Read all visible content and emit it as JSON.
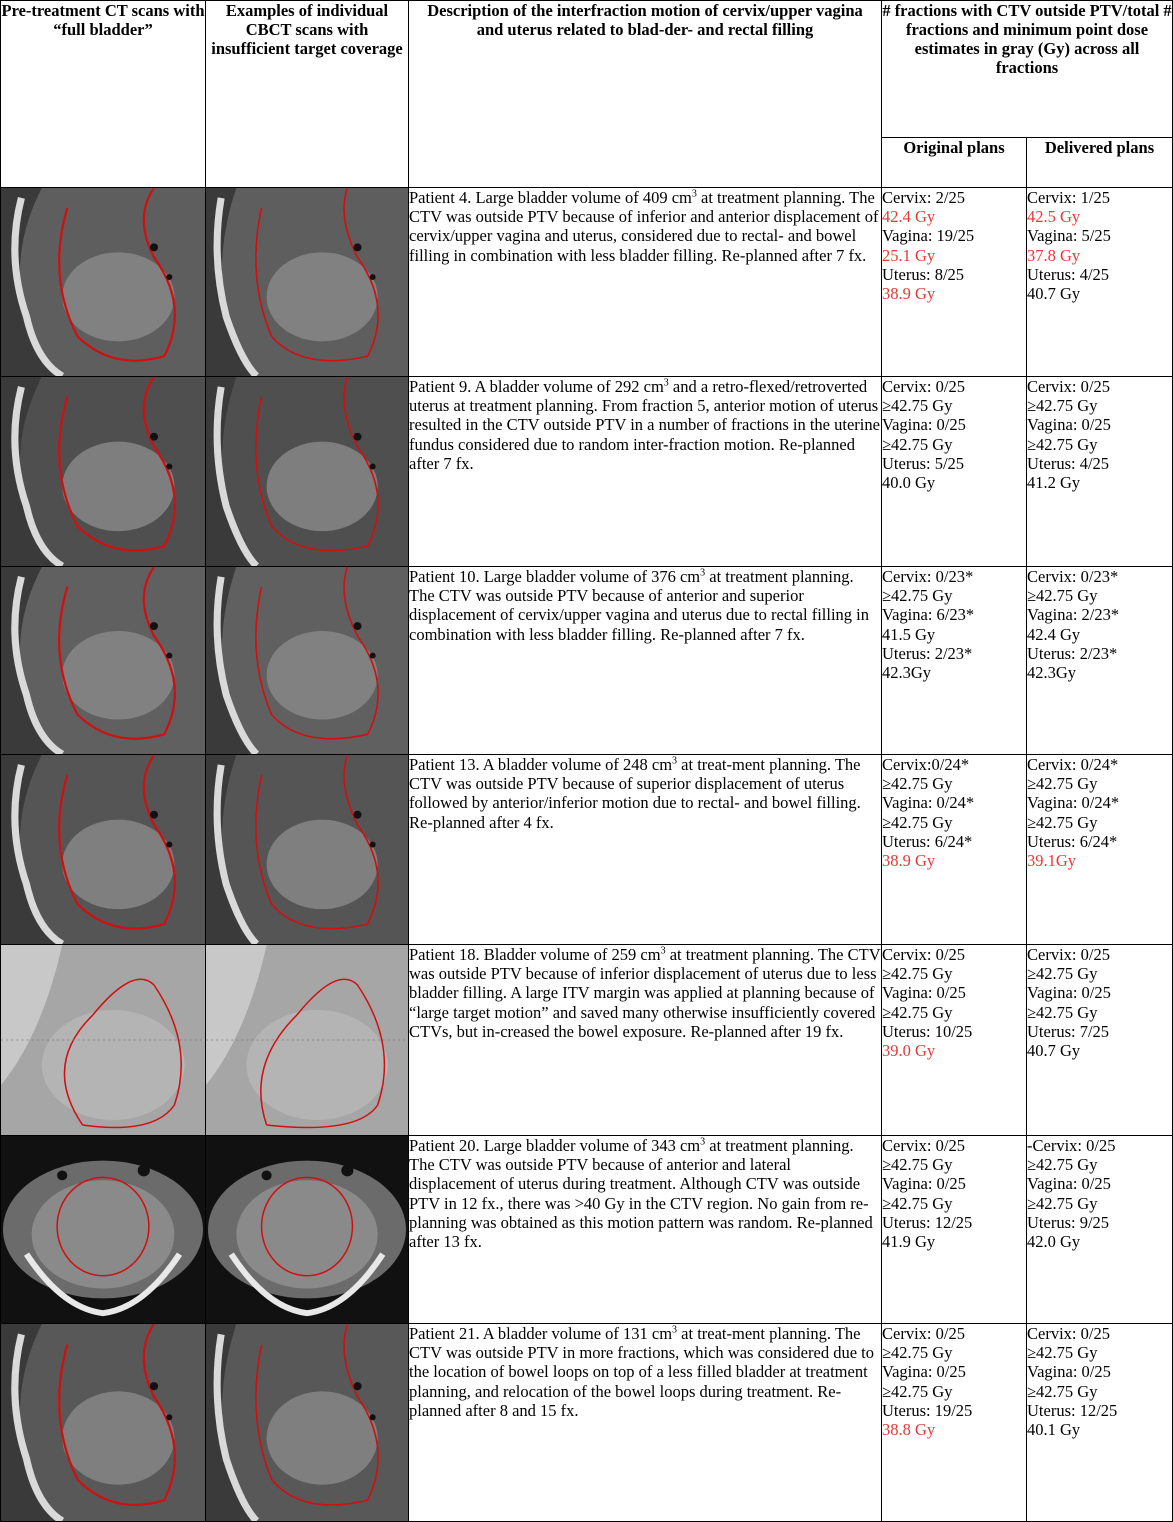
{
  "headers": {
    "col1": "Pre-treatment CT scans with “full bladder”",
    "col2": "Examples of individual CBCT scans with insufficient target coverage",
    "col3": "Description of the interfraction motion of cervix/upper vagina and uterus related to blad-der- and rectal filling",
    "col45": "# fractions with CTV outside PTV/total # fractions and minimum point dose estimates in gray (Gy) across all fractions",
    "col4": "Original plans",
    "col5": "Delivered plans"
  },
  "rows": [
    {
      "desc_pre": "Patient 4. Large bladder volume of 409 cm",
      "desc_post": " at treatment planning. The CTV was outside PTV because of inferior and anterior displacement of cervix/upper vagina and uterus, considered due to rectal- and bowel filling in combination with less bladder filling. Re-planned after 7 fx.",
      "orig": {
        "cervix": "Cervix: 2/25",
        "cervix_dose": "42.4 Gy",
        "vagina": "Vagina: 19/25",
        "vagina_dose": "25.1 Gy",
        "uterus": "Uterus: 8/25",
        "uterus_dose": "38.9 Gy"
      },
      "deliv": {
        "cervix": "Cervix: 1/25",
        "cervix_dose": "42.5 Gy",
        "vagina": "Vagina: 5/25",
        "vagina_dose": "37.8 Gy",
        "uterus": "Uterus: 4/25",
        "uterus_dose": "40.7 Gy"
      }
    },
    {
      "desc_pre": "Patient 9. A bladder volume of 292 cm",
      "desc_post": " and a retro-flexed/retroverted uterus at treatment planning. From fraction 5, anterior motion of uterus resulted in the CTV outside PTV in a number of fractions in the uterine fundus considered due to random inter-fraction motion. Re-planned after 7 fx.",
      "orig": {
        "cervix": "Cervix: 0/25",
        "cervix_dose": "≥42.75 Gy",
        "vagina": "Vagina: 0/25",
        "vagina_dose": "≥42.75 Gy",
        "uterus": "Uterus: 5/25",
        "uterus_dose": "40.0 Gy"
      },
      "deliv": {
        "cervix": "Cervix: 0/25",
        "cervix_dose": "≥42.75 Gy",
        "vagina": "Vagina: 0/25",
        "vagina_dose": "≥42.75 Gy",
        "uterus": "Uterus: 4/25",
        "uterus_dose": "41.2 Gy"
      }
    },
    {
      "desc_pre": "Patient 10. Large bladder volume of 376 cm",
      "desc_post": " at treatment planning. The CTV was outside PTV because of anterior and superior displacement of cervix/upper vagina and uterus due to rectal filling in combination with less bladder filling. Re-planned after 7 fx.",
      "orig": {
        "cervix": "Cervix: 0/23*",
        "cervix_dose": "≥42.75 Gy",
        "vagina": "Vagina: 6/23*",
        "vagina_dose": "41.5 Gy",
        "uterus": "Uterus: 2/23*",
        "uterus_dose": "42.3Gy"
      },
      "deliv": {
        "cervix": "Cervix: 0/23*",
        "cervix_dose": "≥42.75 Gy",
        "vagina": "Vagina: 2/23*",
        "vagina_dose": "42.4 Gy",
        "uterus": "Uterus: 2/23*",
        "uterus_dose": "42.3Gy"
      }
    },
    {
      "desc_pre": "Patient 13. A bladder volume of 248 cm",
      "desc_post": " at treat-ment planning. The CTV was outside PTV because of superior displacement of uterus followed by anterior/inferior motion due to rectal- and bowel filling. Re-planned after 4 fx.",
      "orig": {
        "cervix": "Cervix:0/24*",
        "cervix_dose": "≥42.75 Gy",
        "vagina": "Vagina: 0/24*",
        "vagina_dose": "≥42.75 Gy",
        "uterus": "Uterus: 6/24*",
        "uterus_dose": "38.9 Gy"
      },
      "deliv": {
        "cervix": "Cervix: 0/24*",
        "cervix_dose": "≥42.75 Gy",
        "vagina": "Vagina: 0/24*",
        "vagina_dose": "≥42.75 Gy",
        "uterus": "Uterus: 6/24*",
        "uterus_dose": "39.1Gy"
      }
    },
    {
      "desc_pre": "Patient 18. Bladder volume of 259 cm",
      "desc_post": " at treatment planning. The CTV was outside PTV because of inferior displacement of uterus due to less bladder filling. A large ITV margin was applied at planning because of “large target motion” and saved many otherwise insufficiently covered CTVs, but in-creased the bowel exposure. Re-planned after 19 fx.",
      "orig": {
        "cervix": "Cervix: 0/25",
        "cervix_dose": "≥42.75 Gy",
        "vagina": "Vagina: 0/25",
        "vagina_dose": "≥42.75 Gy",
        "uterus": "Uterus: 10/25",
        "uterus_dose": "39.0 Gy"
      },
      "deliv": {
        "cervix": "Cervix: 0/25",
        "cervix_dose": "≥42.75 Gy",
        "vagina": "Vagina: 0/25",
        "vagina_dose": "≥42.75 Gy",
        "uterus": "Uterus: 7/25",
        "uterus_dose": "40.7 Gy"
      }
    },
    {
      "desc_pre": "Patient 20. Large bladder volume of 343 cm",
      "desc_post": " at treatment planning. The CTV was outside PTV because of anterior and lateral displacement of uterus during treatment. Although CTV was outside PTV in 12 fx., there was >40 Gy in the CTV region. No gain from re-planning was obtained as this motion pattern was random. Re-planned after 13 fx.",
      "orig": {
        "cervix": "Cervix: 0/25",
        "cervix_dose": "≥42.75 Gy",
        "vagina": "Vagina: 0/25",
        "vagina_dose": "≥42.75 Gy",
        "uterus": "Uterus: 12/25",
        "uterus_dose": "41.9 Gy"
      },
      "deliv": {
        "cervix": "-Cervix: 0/25",
        "cervix_dose": "≥42.75 Gy",
        "vagina": "Vagina: 0/25",
        "vagina_dose": "≥42.75 Gy",
        "uterus": "Uterus: 9/25",
        "uterus_dose": "42.0 Gy"
      }
    },
    {
      "desc_pre": "Patient 21. A bladder volume of 131 cm",
      "desc_post": " at treat-ment planning. The CTV was outside PTV in more fractions, which was considered due to the location of bowel loops on top of a less filled bladder at treatment planning, and relocation of the bowel loops during treatment. Re-planned after 8 and 15 fx.",
      "orig": {
        "cervix": "Cervix: 0/25",
        "cervix_dose": "≥42.75 Gy",
        "vagina": "Vagina: 0/25",
        "vagina_dose": "≥42.75 Gy",
        "uterus": "Uterus: 19/25",
        "uterus_dose": "38.8 Gy"
      },
      "deliv": {
        "cervix": "Cervix: 0/25",
        "cervix_dose": "≥42.75 Gy",
        "vagina": "Vagina: 0/25",
        "vagina_dose": "≥42.75 Gy",
        "uterus": "Uterus: 12/25",
        "uterus_dose": "40.1 Gy"
      }
    }
  ],
  "superscript": "3",
  "red_doses": [
    [
      0,
      "orig",
      "cervix_dose"
    ],
    [
      0,
      "orig",
      "vagina_dose"
    ],
    [
      0,
      "orig",
      "uterus_dose"
    ],
    [
      0,
      "deliv",
      "cervix_dose"
    ],
    [
      0,
      "deliv",
      "vagina_dose"
    ],
    [
      3,
      "orig",
      "uterus_dose"
    ],
    [
      3,
      "deliv",
      "uterus_dose"
    ],
    [
      4,
      "orig",
      "uterus_dose"
    ],
    [
      6,
      "orig",
      "uterus_dose"
    ]
  ],
  "colors": {
    "red": "#e53935",
    "contour": "#d01010",
    "border": "#000000"
  }
}
